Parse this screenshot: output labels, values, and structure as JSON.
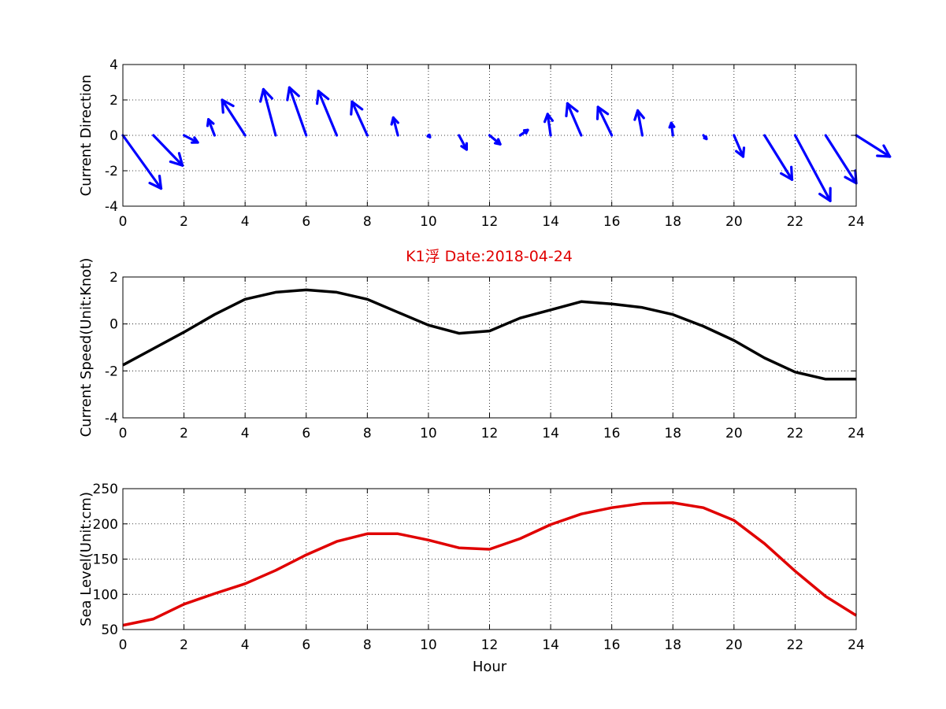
{
  "figure": {
    "title": "K1浮   Date:2018-04-24",
    "title_color": "#e00000"
  },
  "chart_data": [
    {
      "type": "quiver",
      "ylabel": "Current Direction",
      "xlabel": "",
      "xlim": [
        0,
        24
      ],
      "ylim": [
        -4,
        4
      ],
      "xticks": [
        0,
        2,
        4,
        6,
        8,
        10,
        12,
        14,
        16,
        18,
        20,
        22,
        24
      ],
      "yticks": [
        -4,
        -2,
        0,
        2,
        4
      ],
      "grid": true,
      "color": "#0000ff",
      "x": [
        0,
        1,
        2,
        3,
        4,
        5,
        6,
        7,
        8,
        9,
        10,
        11,
        12,
        13,
        14,
        15,
        16,
        17,
        18,
        19,
        20,
        21,
        22,
        23,
        24
      ],
      "u": [
        1.25,
        0.95,
        0.45,
        -0.2,
        -0.75,
        -0.4,
        -0.55,
        -0.6,
        -0.5,
        -0.15,
        0.05,
        0.25,
        0.35,
        0.25,
        -0.1,
        -0.45,
        -0.45,
        -0.15,
        -0.05,
        0.1,
        0.3,
        0.9,
        1.15,
        1.0,
        1.1
      ],
      "v": [
        -3.0,
        -1.7,
        -0.4,
        0.9,
        2.0,
        2.6,
        2.7,
        2.5,
        1.9,
        1.0,
        -0.1,
        -0.8,
        -0.5,
        0.3,
        1.2,
        1.8,
        1.6,
        1.4,
        0.7,
        -0.2,
        -1.2,
        -2.5,
        -3.7,
        -2.7,
        -1.2
      ]
    },
    {
      "type": "line",
      "ylabel": "Current Speed(Unit:Knot)",
      "xlabel": "",
      "xlim": [
        0,
        24
      ],
      "ylim": [
        -4,
        2
      ],
      "xticks": [
        0,
        2,
        4,
        6,
        8,
        10,
        12,
        14,
        16,
        18,
        20,
        22,
        24
      ],
      "yticks": [
        -4,
        -2,
        0,
        2
      ],
      "grid": true,
      "series": [
        {
          "color": "#000000",
          "x": [
            0,
            1,
            2,
            3,
            4,
            5,
            6,
            7,
            8,
            9,
            10,
            11,
            12,
            13,
            14,
            15,
            16,
            17,
            18,
            19,
            20,
            21,
            22,
            23,
            24
          ],
          "y": [
            -1.75,
            -1.05,
            -0.35,
            0.4,
            1.05,
            1.35,
            1.45,
            1.35,
            1.05,
            0.5,
            -0.05,
            -0.4,
            -0.3,
            0.25,
            0.6,
            0.95,
            0.85,
            0.7,
            0.4,
            -0.1,
            -0.7,
            -1.45,
            -2.05,
            -2.35,
            -2.35
          ]
        }
      ]
    },
    {
      "type": "line",
      "ylabel": "Sea Level(Unit:cm)",
      "xlabel": "Hour",
      "xlim": [
        0,
        24
      ],
      "ylim": [
        50,
        250
      ],
      "xticks": [
        0,
        2,
        4,
        6,
        8,
        10,
        12,
        14,
        16,
        18,
        20,
        22,
        24
      ],
      "yticks": [
        50,
        100,
        150,
        200,
        250
      ],
      "grid": true,
      "series": [
        {
          "color": "#e00000",
          "x": [
            0,
            1,
            2,
            3,
            4,
            5,
            6,
            7,
            8,
            9,
            10,
            11,
            12,
            13,
            14,
            15,
            16,
            17,
            18,
            19,
            20,
            21,
            22,
            23,
            24
          ],
          "y": [
            56,
            65,
            86,
            101,
            115,
            134,
            156,
            175,
            186,
            186,
            177,
            166,
            164,
            179,
            199,
            214,
            223,
            229,
            230,
            223,
            205,
            172,
            133,
            97,
            70
          ]
        }
      ]
    }
  ]
}
